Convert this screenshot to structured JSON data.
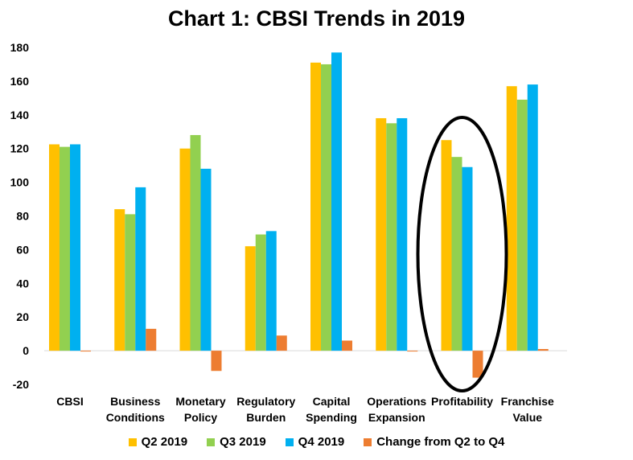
{
  "chart_data": {
    "type": "bar",
    "title": "Chart 1: CBSI Trends in 2019",
    "categories": [
      [
        "CBSI"
      ],
      [
        "Business",
        "Conditions"
      ],
      [
        "Monetary",
        "Policy"
      ],
      [
        "Regulatory",
        "Burden"
      ],
      [
        "Capital",
        "Spending"
      ],
      [
        "Operations",
        "Expansion"
      ],
      [
        "Profitability"
      ],
      [
        "Franchise",
        "Value"
      ]
    ],
    "series": [
      {
        "name": "Q2 2019",
        "color": "#FFC000",
        "values": [
          122.5,
          84,
          120,
          62,
          171,
          138,
          125,
          157
        ]
      },
      {
        "name": "Q3 2019",
        "color": "#92D050",
        "values": [
          121,
          81,
          128,
          69,
          170,
          135,
          115,
          149
        ]
      },
      {
        "name": "Q4 2019",
        "color": "#00B0F0",
        "values": [
          122.5,
          97,
          108,
          71,
          177,
          138,
          109,
          158
        ]
      },
      {
        "name": "Change from Q2 to Q4",
        "color": "#ED7D31",
        "values": [
          0,
          13,
          -12,
          9,
          6,
          0,
          -16,
          1
        ]
      }
    ],
    "ylim": [
      -20,
      180
    ],
    "yticks": [
      -20,
      0,
      20,
      40,
      60,
      80,
      100,
      120,
      140,
      160,
      180
    ],
    "xlabel": "",
    "ylabel": "",
    "grid": false,
    "legend": "bottom",
    "annotation": {
      "shape": "ellipse",
      "category": "Profitability"
    }
  }
}
